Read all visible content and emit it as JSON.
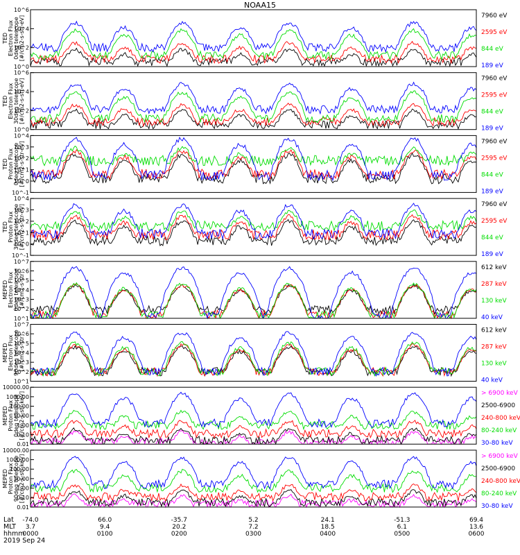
{
  "title": "NOAA15",
  "colors": {
    "black": "#000000",
    "red": "#ff0000",
    "green": "#00dd00",
    "blue": "#0000ff",
    "magenta": "#ff00ff"
  },
  "chart_data": [
    {
      "type": "line",
      "ylabel": [
        "TED",
        "Electron Flux",
        "0deg telescope",
        "[#/cm2-s-str-eV]"
      ],
      "log": true,
      "ylim": [
        1,
        1000000
      ],
      "yticks": [
        "10^0",
        "10^2",
        "10^4",
        "10^6"
      ],
      "series": [
        {
          "name": "7960 eV",
          "color": "#000000",
          "base": 0.5,
          "peak": 1.8
        },
        {
          "name": "2595 eV",
          "color": "#ff0000",
          "base": 0.8,
          "peak": 2.5
        },
        {
          "name": "844 eV",
          "color": "#00dd00",
          "base": 1.2,
          "peak": 3.8
        },
        {
          "name": "189 eV",
          "color": "#0000ff",
          "base": 2.0,
          "peak": 4.6
        }
      ]
    },
    {
      "type": "line",
      "ylabel": [
        "TED",
        "Electron Flux",
        "30deg telescope",
        "[#/cm2-s-str-eV]"
      ],
      "log": true,
      "ylim": [
        1,
        1000000
      ],
      "yticks": [
        "10^0",
        "10^2",
        "10^4",
        "10^6"
      ],
      "series": [
        {
          "name": "7960 eV",
          "color": "#000000",
          "base": 0.5,
          "peak": 2.0
        },
        {
          "name": "2595 eV",
          "color": "#ff0000",
          "base": 0.8,
          "peak": 2.6
        },
        {
          "name": "844 eV",
          "color": "#00dd00",
          "base": 1.2,
          "peak": 3.9
        },
        {
          "name": "189 eV",
          "color": "#0000ff",
          "base": 2.1,
          "peak": 4.8
        }
      ]
    },
    {
      "type": "line",
      "ylabel": [
        "TED",
        "Proton Flux",
        "0deg telescope",
        "[#/cm2-s-str-eV]"
      ],
      "log": true,
      "ylim": [
        0.1,
        10000
      ],
      "yticks": [
        "10^-1",
        "10^0",
        "10^1",
        "10^2",
        "10^3",
        "10^4"
      ],
      "series": [
        {
          "name": "7960 eV",
          "color": "#000000",
          "base": 0.2,
          "peak": 2.3
        },
        {
          "name": "2595 eV",
          "color": "#ff0000",
          "base": 0.6,
          "peak": 2.6
        },
        {
          "name": "844 eV",
          "color": "#00dd00",
          "base": 1.8,
          "peak": 2.9
        },
        {
          "name": "189 eV",
          "color": "#0000ff",
          "base": 0.5,
          "peak": 3.7
        }
      ]
    },
    {
      "type": "line",
      "ylabel": [
        "TED",
        "Proton Flux",
        "30deg telescope",
        "[#/cm2-s-str-eV]"
      ],
      "log": true,
      "ylim": [
        0.1,
        10000
      ],
      "yticks": [
        "10^-1",
        "10^0",
        "10^1",
        "10^2",
        "10^3",
        "10^4"
      ],
      "series": [
        {
          "name": "7960 eV",
          "color": "#000000",
          "base": 0.3,
          "peak": 2.0
        },
        {
          "name": "2595 eV",
          "color": "#ff0000",
          "base": 0.8,
          "peak": 2.4
        },
        {
          "name": "844 eV",
          "color": "#00dd00",
          "base": 1.6,
          "peak": 2.8
        },
        {
          "name": "189 eV",
          "color": "#0000ff",
          "base": 0.9,
          "peak": 3.4
        }
      ]
    },
    {
      "type": "line",
      "ylabel": [
        "MEPED",
        "Electron Flux",
        "0deg telescope",
        "[#/cm2-s-str]"
      ],
      "log": true,
      "ylim": [
        10,
        10000000
      ],
      "yticks": [
        "10^1",
        "10^2",
        "10^3",
        "10^4",
        "10^5",
        "10^6",
        "10^7"
      ],
      "series": [
        {
          "name": "612 keV",
          "color": "#000000",
          "base": 1.9,
          "peak": 4.4
        },
        {
          "name": "287 keV",
          "color": "#ff0000",
          "base": 1.4,
          "peak": 4.5
        },
        {
          "name": "130 keV",
          "color": "#00dd00",
          "base": 1.3,
          "peak": 4.6
        },
        {
          "name": "40 keV",
          "color": "#0000ff",
          "base": 1.2,
          "peak": 6.3
        }
      ]
    },
    {
      "type": "line",
      "ylabel": [
        "MEPED",
        "Electron Flux",
        "90deg telescope",
        "[#/cm2-s-str]"
      ],
      "log": true,
      "ylim": [
        10,
        10000000
      ],
      "yticks": [
        "10^1",
        "10^2",
        "10^3",
        "10^4",
        "10^5",
        "10^6",
        "10^7"
      ],
      "series": [
        {
          "name": "612 keV",
          "color": "#000000",
          "base": 2.0,
          "peak": 4.6
        },
        {
          "name": "287 keV",
          "color": "#ff0000",
          "base": 2.0,
          "peak": 4.8
        },
        {
          "name": "130 keV",
          "color": "#00dd00",
          "base": 2.0,
          "peak": 5.0
        },
        {
          "name": "40 keV",
          "color": "#0000ff",
          "base": 2.0,
          "peak": 6.1
        }
      ]
    },
    {
      "type": "line",
      "ylabel": [
        "MEPED",
        "Proton Flux",
        "0deg telescope",
        "[#/cm2-s-str-keV]"
      ],
      "log": true,
      "ylim": [
        0.01,
        10000
      ],
      "yticks": [
        "0.01",
        "0.10",
        "1.00",
        "10.00",
        "100.00",
        "1000.00",
        "10000.00"
      ],
      "series": [
        {
          "name": "> 6900 keV",
          "color": "#ff00ff",
          "base": -1.8,
          "peak": -0.7
        },
        {
          "name": "2500-6900",
          "color": "#000000",
          "base": -1.6,
          "peak": -0.4
        },
        {
          "name": "240-800 keV",
          "color": "#ff0000",
          "base": -0.9,
          "peak": 0.4
        },
        {
          "name": "80-240 keV",
          "color": "#00dd00",
          "base": 0.0,
          "peak": 1.4
        },
        {
          "name": "30-80 keV",
          "color": "#0000ff",
          "base": 0.2,
          "peak": 3.3
        }
      ]
    },
    {
      "type": "line",
      "ylabel": [
        "MEPED",
        "Proton Flux",
        "90deg telescope",
        "[#/cm2-s-str-keV]"
      ],
      "log": true,
      "ylim": [
        0.01,
        10000
      ],
      "yticks": [
        "0.01",
        "0.10",
        "1.00",
        "10.00",
        "100.00",
        "1000.00",
        "10000.00"
      ],
      "series": [
        {
          "name": "> 6900 keV",
          "color": "#ff00ff",
          "base": -1.7,
          "peak": -0.8
        },
        {
          "name": "2500-6900",
          "color": "#000000",
          "base": -1.5,
          "peak": -0.3
        },
        {
          "name": "240-800 keV",
          "color": "#ff0000",
          "base": -0.9,
          "peak": 0.3
        },
        {
          "name": "80-240 keV",
          "color": "#00dd00",
          "base": 0.0,
          "peak": 1.8
        },
        {
          "name": "30-80 keV",
          "color": "#0000ff",
          "base": 0.4,
          "peak": 3.2
        }
      ]
    }
  ],
  "xaxis": {
    "row_labels": [
      "Lat",
      "MLT",
      "hhmm"
    ],
    "date": "2019 Sep 24",
    "ticks": [
      {
        "lat": "-74.0",
        "mlt": "3.7",
        "hhmm": "0000"
      },
      {
        "lat": "66.0",
        "mlt": "9.4",
        "hhmm": "0100"
      },
      {
        "lat": "-35.7",
        "mlt": "20.2",
        "hhmm": "0200"
      },
      {
        "lat": "5.2",
        "mlt": "7.2",
        "hhmm": "0300"
      },
      {
        "lat": "24.1",
        "mlt": "18.5",
        "hhmm": "0400"
      },
      {
        "lat": "-51.3",
        "mlt": "6.1",
        "hhmm": "0500"
      },
      {
        "lat": "69.4",
        "mlt": "13.6",
        "hhmm": "0600"
      }
    ]
  }
}
